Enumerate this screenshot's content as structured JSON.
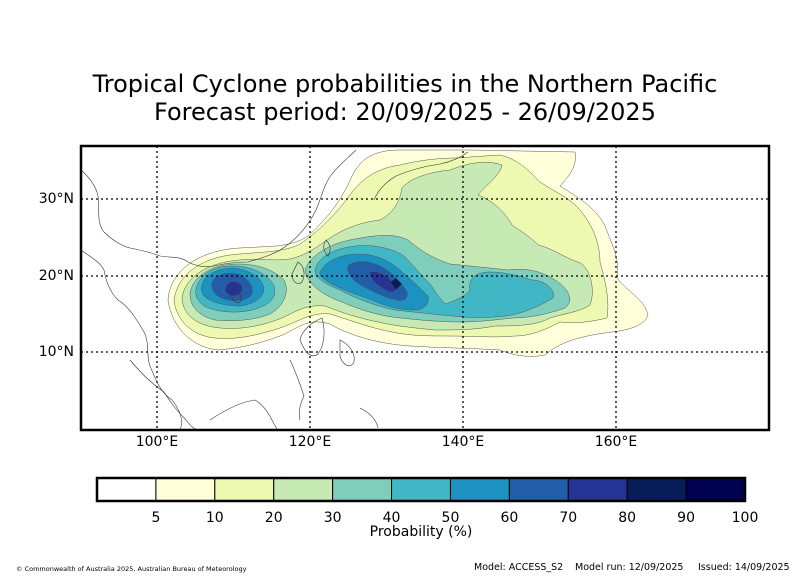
{
  "title_line1": "Tropical Cyclone probabilities in the Northern Pacific",
  "title_line2": "Forecast period: 20/09/2025 - 26/09/2025",
  "lat_ticks": [
    "30°N",
    "20°N",
    "10°N"
  ],
  "lon_ticks": [
    "100°E",
    "120°E",
    "140°E",
    "160°E"
  ],
  "colorbar": {
    "label": "Probability (%)",
    "ticks": [
      "5",
      "10",
      "20",
      "30",
      "40",
      "50",
      "60",
      "70",
      "80",
      "90",
      "100"
    ],
    "colors": [
      "#ffffff",
      "#ffffd9",
      "#edf8b1",
      "#c7e9b4",
      "#7fcdbb",
      "#41b6c4",
      "#1d91c0",
      "#225ea8",
      "#253494",
      "#081d58",
      "#000050"
    ]
  },
  "footer": {
    "copyright": "© Commonwealth of Australia 2025, Australian Bureau of Meteorology",
    "model": "Model: ACCESS_S2",
    "model_run": "Model run: 12/09/2025",
    "issued": "Issued: 14/09/2025"
  }
}
